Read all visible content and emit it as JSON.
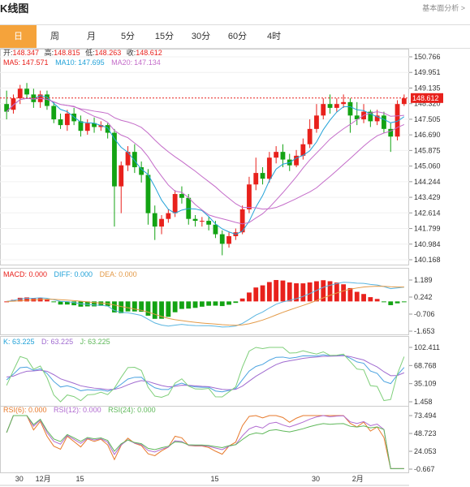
{
  "page": {
    "title": "K线图",
    "top_link": "基本面分析 >"
  },
  "tabs": [
    {
      "label": "日",
      "active": true
    },
    {
      "label": "周",
      "active": false
    },
    {
      "label": "月",
      "active": false
    },
    {
      "label": "5分",
      "active": false
    },
    {
      "label": "15分",
      "active": false
    },
    {
      "label": "30分",
      "active": false
    },
    {
      "label": "60分",
      "active": false
    },
    {
      "label": "4时",
      "active": false
    }
  ],
  "colors": {
    "up": "#e8211c",
    "down": "#13a313",
    "ma5": "#22a2d8",
    "ma10": "#c46cc9",
    "ma20": "#c46cc9",
    "macd_dif": "#5ab5e0",
    "macd_dea": "#e39a48",
    "k": "#4ba3e0",
    "d": "#a06bd0",
    "j": "#7fcf7a",
    "rsi6": "#e77a2c",
    "rsi12": "#b06ad0",
    "rsi24": "#5fb85a",
    "last_line": "#e8211c"
  },
  "ohlc_label": {
    "open_k": "开:",
    "open": "148.347",
    "high_k": "高:",
    "high": "148.815",
    "low_k": "低:",
    "low": "148.263",
    "close_k": "收:",
    "close": "148.612"
  },
  "ma_label": {
    "ma5_k": "MA5:",
    "ma5": "147.571",
    "ma10_k": "MA10:",
    "ma10": "147.695",
    "ma20_k": "MA20:",
    "ma20": "147.134"
  },
  "macd_label": {
    "macd": "MACD: 0.000",
    "diff": "DIFF: 0.000",
    "dea": "DEA: 0.000"
  },
  "kdj_label": {
    "k": "K: 63.225",
    "d": "D: 63.225",
    "j": "J: 63.225"
  },
  "rsi_label": {
    "r6": "RSI(6): 0.000",
    "r12": "RSI(12): 0.000",
    "r24": "RSI(24): 0.000"
  },
  "last_price": "148.612",
  "chart_data": [
    {
      "type": "candlestick",
      "name": "main",
      "y_ticks": [
        "150.766",
        "149.951",
        "149.135",
        "148.320",
        "147.505",
        "146.690",
        "145.875",
        "145.060",
        "144.244",
        "143.429",
        "142.614",
        "141.799",
        "140.984",
        "140.168"
      ],
      "ylim": [
        140.168,
        150.766
      ],
      "x_ticks": [
        "30",
        "12月",
        "15",
        "15",
        "30",
        "2月"
      ],
      "candles": [
        [
          148.3,
          147.9,
          149.0,
          147.5
        ],
        [
          148.0,
          148.6,
          148.8,
          147.8
        ],
        [
          148.6,
          149.1,
          149.3,
          148.3
        ],
        [
          149.1,
          148.8,
          149.4,
          148.6
        ],
        [
          148.8,
          148.4,
          149.1,
          148.1
        ],
        [
          148.4,
          148.8,
          149.0,
          148.1
        ],
        [
          148.8,
          148.2,
          149.0,
          148.0
        ],
        [
          148.2,
          147.5,
          148.4,
          147.3
        ],
        [
          147.5,
          147.2,
          147.8,
          147.0
        ],
        [
          147.2,
          147.8,
          148.0,
          146.9
        ],
        [
          147.8,
          147.4,
          148.1,
          147.2
        ],
        [
          147.4,
          146.9,
          147.7,
          146.6
        ],
        [
          146.9,
          147.3,
          147.5,
          146.7
        ],
        [
          147.3,
          147.1,
          147.6,
          146.8
        ],
        [
          147.1,
          147.2,
          147.4,
          146.9
        ],
        [
          147.2,
          146.8,
          147.3,
          146.5
        ],
        [
          146.8,
          144.0,
          147.0,
          141.9
        ],
        [
          144.0,
          145.1,
          145.3,
          142.6
        ],
        [
          145.1,
          145.8,
          146.1,
          144.8
        ],
        [
          145.8,
          145.0,
          146.2,
          144.7
        ],
        [
          145.0,
          144.6,
          145.3,
          144.2
        ],
        [
          144.6,
          142.6,
          144.9,
          142.0
        ],
        [
          142.6,
          141.9,
          143.0,
          141.2
        ],
        [
          141.9,
          142.3,
          142.5,
          141.5
        ],
        [
          142.3,
          142.6,
          142.8,
          142.1
        ],
        [
          142.6,
          143.6,
          143.8,
          142.4
        ],
        [
          143.6,
          143.4,
          144.0,
          143.1
        ],
        [
          143.4,
          142.3,
          143.6,
          142.0
        ],
        [
          142.3,
          142.2,
          142.5,
          141.9
        ],
        [
          142.2,
          142.2,
          142.4,
          141.9
        ],
        [
          142.2,
          142.0,
          142.4,
          141.7
        ],
        [
          142.0,
          141.5,
          142.2,
          141.3
        ],
        [
          141.5,
          141.0,
          141.7,
          140.4
        ],
        [
          141.0,
          141.4,
          141.6,
          140.8
        ],
        [
          141.4,
          141.6,
          141.8,
          141.2
        ],
        [
          141.6,
          142.8,
          143.0,
          141.5
        ],
        [
          142.8,
          144.1,
          144.5,
          142.6
        ],
        [
          144.1,
          144.7,
          145.5,
          143.8
        ],
        [
          144.7,
          144.4,
          145.0,
          144.1
        ],
        [
          144.4,
          145.5,
          145.8,
          144.2
        ],
        [
          145.5,
          145.8,
          146.1,
          145.2
        ],
        [
          145.8,
          145.4,
          146.2,
          145.0
        ],
        [
          145.4,
          145.1,
          145.7,
          144.8
        ],
        [
          145.1,
          145.6,
          145.9,
          145.0
        ],
        [
          145.6,
          146.2,
          146.5,
          145.4
        ],
        [
          146.2,
          147.0,
          147.5,
          146.0
        ],
        [
          147.0,
          147.7,
          148.3,
          146.8
        ],
        [
          147.7,
          148.3,
          148.6,
          147.5
        ],
        [
          148.3,
          148.1,
          148.8,
          147.8
        ],
        [
          148.1,
          148.3,
          148.6,
          147.9
        ],
        [
          148.3,
          148.4,
          148.8,
          148.1
        ],
        [
          148.4,
          147.7,
          148.6,
          146.8
        ],
        [
          147.7,
          147.5,
          148.4,
          147.2
        ],
        [
          147.5,
          147.9,
          148.3,
          147.3
        ],
        [
          147.9,
          147.4,
          148.0,
          147.1
        ],
        [
          147.4,
          147.7,
          148.0,
          147.2
        ],
        [
          147.7,
          147.0,
          147.9,
          146.8
        ],
        [
          147.0,
          146.6,
          147.3,
          145.8
        ],
        [
          146.6,
          148.3,
          148.5,
          146.4
        ],
        [
          148.3,
          148.6,
          148.8,
          148.2
        ]
      ]
    },
    {
      "type": "bar",
      "name": "MACD",
      "y_ticks": [
        "1.189",
        "0.242",
        "-0.706",
        "-1.653"
      ],
      "ylim": [
        -1.653,
        1.189
      ]
    },
    {
      "type": "line",
      "name": "KDJ",
      "y_ticks": [
        "102.411",
        "68.768",
        "35.109",
        "1.458"
      ],
      "ylim": [
        1.458,
        102.411
      ]
    },
    {
      "type": "line",
      "name": "RSI",
      "y_ticks": [
        "73.494",
        "48.723",
        "24.053",
        "-0.667"
      ],
      "ylim": [
        -0.667,
        73.494
      ]
    }
  ]
}
